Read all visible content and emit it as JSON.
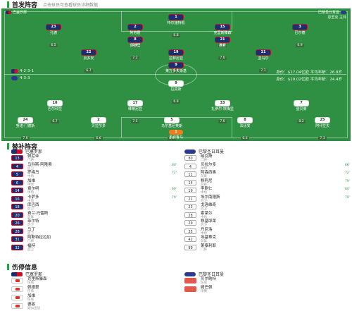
{
  "lineup_title": "首发阵容",
  "lineup_note": "点击球员可查看球员详细数据",
  "pitch": {
    "home_team": "巴塞罗那",
    "away_team": "巴黎圣日耳曼",
    "away_coach": "恩里克 主帅",
    "home_formation": "4-2-3-1",
    "away_formation": "4-3-3",
    "home_stats": "身价：$17.04亿欧  平均年龄：26.8岁",
    "away_stats": "身价：$10.02亿欧  平均年龄：24.4岁"
  },
  "home_players": [
    {
      "num": "1",
      "name": "特尔施特根",
      "rating": "6.8"
    },
    {
      "num": "23",
      "name": "孔德",
      "rating": "6.5"
    },
    {
      "num": "2",
      "name": "阿劳霍",
      "rating": "6.8"
    },
    {
      "num": "15",
      "name": "克里斯滕森",
      "rating": "6.6"
    },
    {
      "num": "3",
      "name": "巴尔德",
      "rating": "6.9"
    },
    {
      "num": "8",
      "name": "佩德里",
      "rating": "7.2"
    },
    {
      "num": "21",
      "name": "德容",
      "rating": "7.0"
    },
    {
      "num": "22",
      "name": "京多安",
      "rating": "6.7"
    },
    {
      "num": "19",
      "name": "拉菲尼亚",
      "rating": "7.4"
    },
    {
      "num": "11",
      "name": "亚马尔",
      "rating": "7.1"
    },
    {
      "num": "9",
      "name": "莱万多夫斯基",
      "rating": "6.3"
    }
  ],
  "away_players": [
    {
      "num": "1",
      "name": "多纳鲁马",
      "rating": "6.9"
    },
    {
      "num": "25",
      "name": "阿什拉夫",
      "rating": "7.3"
    },
    {
      "num": "5",
      "name": "马尔基尼奥斯",
      "rating": "6.8"
    },
    {
      "num": "2",
      "name": "贝拉尔多",
      "rating": "6.6"
    },
    {
      "num": "24",
      "name": "努诺·门德斯",
      "rating": "7.0"
    },
    {
      "num": "17",
      "name": "维蒂尼亚",
      "rating": "7.5"
    },
    {
      "num": "8",
      "name": "法比安",
      "rating": "6.6"
    },
    {
      "num": "33",
      "name": "扎伊尔-埃梅里",
      "rating": "7.0"
    },
    {
      "num": "7",
      "name": "登贝莱",
      "rating": "8.2"
    },
    {
      "num": "9",
      "name": "拉莫斯",
      "rating": "6.9"
    },
    {
      "num": "10",
      "name": "巴尔科拉",
      "rating": "6.7"
    }
  ],
  "subs_title": "替补阵容",
  "subs_home_team": "巴塞罗那",
  "subs_away_team": "巴黎圣日耳曼",
  "subs_home": [
    {
      "num": "13",
      "name": "佩尼亚",
      "pos": "门将",
      "minute": ""
    },
    {
      "num": "4",
      "name": "马科斯·阿隆索",
      "pos": "后卫",
      "minute": "60'"
    },
    {
      "num": "5",
      "name": "罗梅乌",
      "pos": "中场",
      "minute": "72'"
    },
    {
      "num": "6",
      "name": "加维",
      "pos": "中场",
      "minute": ""
    },
    {
      "num": "14",
      "name": "费尔明",
      "pos": "中场",
      "minute": "60'"
    },
    {
      "num": "16",
      "name": "卡萨多",
      "pos": "中场",
      "minute": "79'"
    },
    {
      "num": "18",
      "name": "库巴西",
      "pos": "后卫",
      "minute": ""
    },
    {
      "num": "20",
      "name": "费兰·托雷斯",
      "pos": "前锋",
      "minute": ""
    },
    {
      "num": "26",
      "name": "菲尔特",
      "pos": "后卫",
      "minute": ""
    },
    {
      "num": "28",
      "name": "马丁",
      "pos": "后卫",
      "minute": ""
    },
    {
      "num": "31",
      "name": "阿斯特拉拉加",
      "pos": "门将",
      "minute": ""
    },
    {
      "num": "32",
      "name": "福特",
      "pos": "后卫",
      "minute": ""
    }
  ],
  "subs_away": [
    {
      "num": "80",
      "name": "纳瓦斯",
      "pos": "门将",
      "minute": ""
    },
    {
      "num": "4",
      "name": "贝拉尔多",
      "pos": "中场",
      "minute": "66'"
    },
    {
      "num": "11",
      "name": "阿森西奥",
      "pos": "前锋",
      "minute": "72'"
    },
    {
      "num": "14",
      "name": "穆阿尼",
      "pos": "前锋",
      "minute": "79'"
    },
    {
      "num": "19",
      "name": "李刚仁",
      "pos": "中场",
      "minute": "60'"
    },
    {
      "num": "21",
      "name": "埃尔南德斯",
      "pos": "后卫",
      "minute": "79'"
    },
    {
      "num": "23",
      "name": "戈洛维奇",
      "pos": "后卫",
      "minute": ""
    },
    {
      "num": "28",
      "name": "索莱尔",
      "pos": "中场",
      "minute": ""
    },
    {
      "num": "29",
      "name": "穆基耶莱",
      "pos": "后卫",
      "minute": ""
    },
    {
      "num": "35",
      "name": "丹尼洛",
      "pos": "中场",
      "minute": ""
    },
    {
      "num": "42",
      "name": "埃基蒂克",
      "pos": "前锋",
      "minute": ""
    },
    {
      "num": "99",
      "name": "莱泰利耶",
      "pos": "门将",
      "minute": ""
    }
  ],
  "inj_title": "伤停信息",
  "inj_home_team": "巴塞罗那",
  "inj_away_team": "巴黎圣日耳曼",
  "inj_home": [
    {
      "name": "克里斯滕森",
      "status": "伤病"
    },
    {
      "name": "佩德里",
      "status": "伤病"
    },
    {
      "name": "加维",
      "status": "伤病"
    },
    {
      "name": "德容",
      "status": "疑似出战"
    }
  ],
  "inj_away": [
    {
      "name": "贝尔纳特",
      "status": "伤病"
    },
    {
      "name": "姆巴佩",
      "status": "停赛"
    }
  ]
}
